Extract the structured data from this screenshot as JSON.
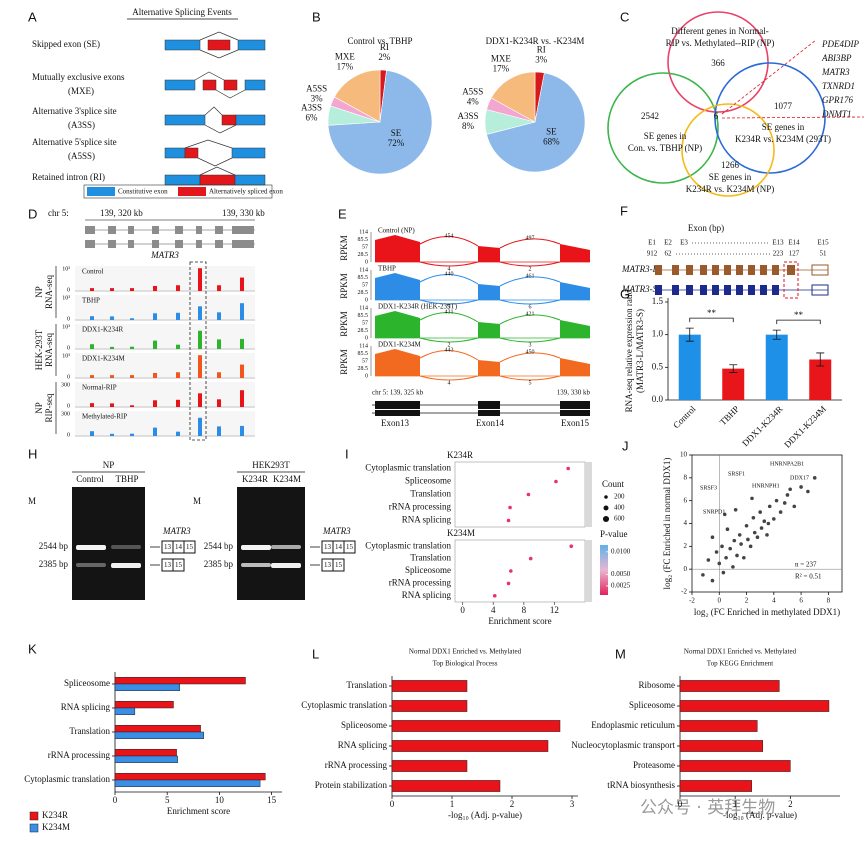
{
  "letters": [
    "A",
    "B",
    "C",
    "D",
    "E",
    "F",
    "G",
    "H",
    "I",
    "J",
    "K",
    "L",
    "M"
  ],
  "splicing": {
    "title": "Alternative Splicing Events",
    "labels": [
      "Skipped exon (SE)",
      "Mutually exclusive exons",
      "(MXE)",
      "Alternative 3'splice site",
      "(A3SS)",
      "Alternative 5'splice site",
      "(A5SS)",
      "Retained intron  (RI)"
    ],
    "legend": [
      "Constitutive exon",
      "Alternatively spliced exon"
    ]
  },
  "venn": {
    "sets": [
      "Different genes in Normal-",
      "RIP vs. Methylated--RIP (NP)",
      "SE genes in",
      "Con. vs. TBHP (NP)",
      "SE genes in",
      "K234R vs. K234M (293T)",
      "SE genes in",
      "K234R vs. K234M (NP)"
    ],
    "counts": [
      "366",
      "2542",
      "6",
      "1077",
      "1266"
    ],
    "genes": [
      "PDE4DIP",
      "ABI3BP",
      "MATR3",
      "TXNRD1",
      "GPR176",
      "DNMT1"
    ]
  },
  "tracks": {
    "locus": [
      "chr 5:",
      "139, 320 kb",
      "139, 330 kb"
    ],
    "gene": "MATR3",
    "names": [
      "Control",
      "TBHP",
      "DDX1-K234R",
      "DDX1-K234M",
      "Normal-RIP",
      "Methylated-RIP"
    ],
    "scales": [
      "10³",
      "10³",
      "10³",
      "10³",
      "300",
      "300"
    ],
    "zero": "0",
    "groups": [
      [
        "NP",
        "RNA-seq"
      ],
      [
        "HEK-293T",
        "RNA-seq"
      ],
      [
        "NP",
        "RIP-seq"
      ]
    ]
  },
  "sashimi": {
    "names": [
      "Control (NP)",
      "TBHP",
      "DDX1-K234R (HEK-239T)",
      "DDX1-K234M"
    ],
    "axis": "RPKM",
    "ticks": [
      "114",
      "85.5",
      "57",
      "28.5",
      "0"
    ],
    "junctions": [
      [
        "454",
        "497",
        "4",
        "2"
      ],
      [
        "440",
        "461",
        "5",
        "6"
      ],
      [
        "431",
        "421",
        "2",
        "3"
      ],
      [
        "443",
        "450",
        "4",
        "5"
      ]
    ],
    "locus": [
      "chr 5: 139, 325 kb",
      "139, 330 kb"
    ],
    "exons": [
      "Exon13",
      "Exon14",
      "Exon15"
    ]
  },
  "isoforms": {
    "axis": "Exon (bp)",
    "exons": [
      "E1",
      "E2",
      "E3",
      "E13",
      "E14",
      "E15"
    ],
    "lengths": [
      "912",
      "62",
      "223",
      "127",
      "51"
    ],
    "names": [
      "MATR3-L",
      "MATR3-S"
    ]
  },
  "gel": {
    "groups": [
      {
        "title": "NP",
        "lanes": [
          "M",
          "Control",
          "TBHP"
        ]
      },
      {
        "title": "HEK293T",
        "lanes": [
          "M",
          "K234R",
          "K234M"
        ]
      }
    ],
    "sizes": [
      "2544 bp",
      "2385 bp"
    ],
    "gene": "MATR3",
    "long": [
      "13",
      "14",
      "15"
    ],
    "short": [
      "13",
      "15"
    ]
  },
  "watermark": "公众号 · 英拜生物",
  "chart_data": [
    {
      "type": "pie",
      "title": "Control vs. TBHP",
      "categories": [
        "RI",
        "SE",
        "A3SS",
        "A5SS",
        "MXE"
      ],
      "values": [
        2,
        72,
        6,
        3,
        17
      ],
      "value_labels": [
        "2%",
        "72%",
        "6%",
        "3%",
        "17%"
      ],
      "colors": [
        "#d7191c",
        "#8db9ea",
        "#b7eedb",
        "#f3a6cf",
        "#f7ba7d"
      ]
    },
    {
      "type": "pie",
      "title": "DDX1-K234R vs. -K234M",
      "categories": [
        "RI",
        "SE",
        "A3SS",
        "A5SS",
        "MXE"
      ],
      "values": [
        3,
        68,
        8,
        4,
        17
      ],
      "value_labels": [
        "3%",
        "68%",
        "8%",
        "4%",
        "17%"
      ],
      "colors": [
        "#d7191c",
        "#8db9ea",
        "#b7eedb",
        "#f3a6cf",
        "#f7ba7d"
      ]
    },
    {
      "type": "bar",
      "categories": [
        "Control",
        "TBHP",
        "DDX1-K234R",
        "DDX1-K234M"
      ],
      "values": [
        1.0,
        0.48,
        1.0,
        0.62
      ],
      "errors": [
        0.1,
        0.06,
        0.07,
        0.1
      ],
      "colors": [
        "#1e90e8",
        "#e8161b",
        "#1e90e8",
        "#e8161b"
      ],
      "ylabel": [
        "RNA-seq relative expression ratio",
        "(MATR3-L/MATR3-S)"
      ],
      "ylim": [
        0,
        1.5
      ],
      "yticks": [
        {
          "value": 0,
          "label": "0.0"
        },
        0.5,
        {
          "value": 1,
          "label": "1.0"
        },
        1.5
      ],
      "annotations": [
        "**",
        "**"
      ]
    },
    {
      "type": "dot",
      "title": "K234R",
      "categories": [
        "Cytoplasmic translation",
        "Spliceosome",
        "Translation",
        "rRNA processing",
        "RNA splicing"
      ],
      "values": [
        13.8,
        12.2,
        8.6,
        6.2,
        6.0
      ],
      "color": "#e6326e",
      "xlim": [
        -1,
        16
      ]
    },
    {
      "type": "dot",
      "title": "K234M",
      "categories": [
        "Cytoplasmic translation",
        "Translation",
        "Spliceosome",
        "rRNA processing",
        "RNA splicing"
      ],
      "values": [
        14.2,
        8.9,
        6.3,
        6.0,
        4.2
      ],
      "color": "#e6326e",
      "xlim": [
        -1,
        16
      ],
      "xticks": [
        0,
        4,
        8,
        12
      ],
      "xlabel": "Enrichment score",
      "legend": {
        "count_title": "Count",
        "counts": [
          200,
          400,
          600
        ],
        "p_title": "P-value",
        "plim": [
          0.0005,
          0.0115
        ],
        "p_ticks": [
          {
            "value": 0.01,
            "label": "0.0100"
          },
          {
            "value": 0.005,
            "label": "0.0050"
          },
          {
            "value": 0.0025,
            "label": "0.0025"
          }
        ]
      }
    },
    {
      "type": "scatter",
      "x": [
        -1.2,
        -0.8,
        -0.5,
        -0.2,
        0,
        0.2,
        0.3,
        0.5,
        0.6,
        0.8,
        1.0,
        1.1,
        1.3,
        1.5,
        1.6,
        1.8,
        2.0,
        2.1,
        2.3,
        2.5,
        2.6,
        2.8,
        3.0,
        3.1,
        3.3,
        3.5,
        3.7,
        4.0,
        4.2,
        4.5,
        4.8,
        5.0,
        5.5,
        6.0,
        6.5,
        7.0,
        -0.5,
        0.4,
        1.2,
        2.4,
        3.6,
        5.2
      ],
      "y": [
        -0.5,
        0.8,
        -1.0,
        1.5,
        0.5,
        2.0,
        -0.3,
        1.0,
        3.5,
        1.8,
        0.2,
        2.5,
        1.2,
        3.0,
        2.2,
        1.0,
        3.8,
        2.6,
        2.0,
        4.5,
        3.2,
        2.8,
        5.0,
        3.6,
        4.2,
        3.0,
        5.5,
        4.4,
        6.0,
        5.0,
        5.8,
        6.5,
        5.5,
        7.2,
        6.8,
        8.0,
        2.8,
        4.8,
        5.2,
        6.2,
        4.0,
        7.0
      ],
      "color": "#444444",
      "xlim": [
        -2,
        9
      ],
      "ylim": [
        -2,
        10
      ],
      "xticks": [
        -2,
        0,
        2,
        4,
        6,
        8
      ],
      "yticks": [
        -2,
        0,
        2,
        4,
        6,
        8,
        10
      ],
      "xlabel": "log₂ (FC Enriched in methylated DDX1)",
      "ylabel": "log₂ (FC Enriched in normal DDX1)",
      "annotations": [
        "n = 237",
        "R² = 0.51"
      ],
      "gene_labels": [
        "SRSF3",
        "SRSF1",
        "HNRNPA2B1",
        "SNRPD1",
        "HNRNPH1",
        "DDX17"
      ]
    },
    {
      "type": "hbar",
      "categories": [
        "Spliceosome",
        "RNA splicing",
        "Translation",
        "rRNA processing",
        "Cytoplasmic translation"
      ],
      "series": [
        {
          "name": "K234R",
          "color": "#e8141a",
          "values": [
            12.5,
            5.6,
            8.2,
            5.9,
            14.4
          ]
        },
        {
          "name": "K234M",
          "color": "#3a8ee6",
          "values": [
            6.2,
            1.9,
            8.5,
            6.0,
            13.9
          ]
        }
      ],
      "xlim": [
        0,
        16
      ],
      "xticks": [
        0,
        5,
        10,
        15
      ],
      "xlabel": "Enrichment score"
    },
    {
      "type": "hbar",
      "title": [
        "Normal DDX1 Enriched vs. Methylated",
        "Top Biological Process"
      ],
      "categories": [
        "Translation",
        "Cytoplasmic translation",
        "Spliceosome",
        "RNA splicing",
        "rRNA processing",
        "Protein stabilization"
      ],
      "series": [
        {
          "color": "#e8141a",
          "values": [
            1.25,
            1.25,
            2.8,
            2.6,
            1.25,
            1.8
          ]
        }
      ],
      "xlim": [
        0,
        3.1
      ],
      "xticks": [
        0,
        1,
        2,
        3
      ],
      "xlabel": "-log₁₀ (Adj. p-value)"
    },
    {
      "type": "hbar",
      "title": [
        "Normal DDX1 Enriched vs. Methylated",
        "Top KEGG Enrichment"
      ],
      "categories": [
        "Ribosome",
        "Spliceosome",
        "Endoplasmic reticulum",
        "Nucleocytoplasmic transport",
        "Proteasome",
        "tRNA biosynthesis"
      ],
      "series": [
        {
          "color": "#e8141a",
          "values": [
            1.8,
            2.7,
            1.4,
            1.5,
            2.0,
            1.3
          ]
        }
      ],
      "xlim": [
        0,
        2.9
      ],
      "xticks": [
        0,
        1,
        2
      ],
      "xlabel": "-log₁₀ (Adj. p-value)"
    }
  ]
}
